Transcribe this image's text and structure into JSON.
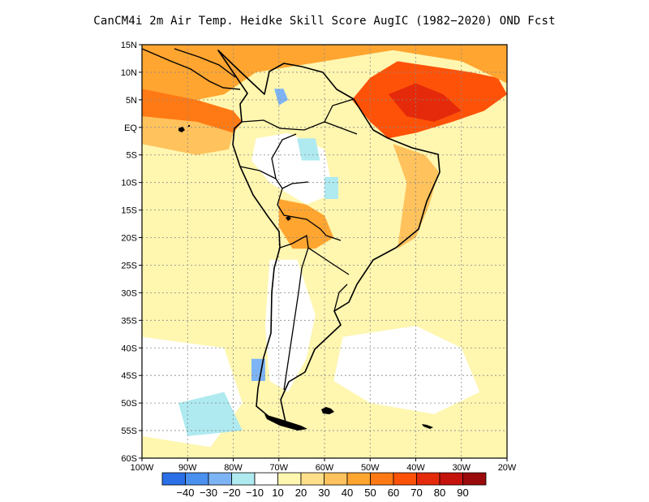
{
  "title": "CanCM4i  2m Air Temp. Heidke Skill Score AugIC (1982−2020) OND Fcst",
  "map": {
    "lon_range": [
      -100,
      -20
    ],
    "lat_range": [
      -60,
      15
    ],
    "lat_ticks": [
      {
        "value": 15,
        "label": "15N"
      },
      {
        "value": 10,
        "label": "10N"
      },
      {
        "value": 5,
        "label": "5N"
      },
      {
        "value": 0,
        "label": "EQ"
      },
      {
        "value": -5,
        "label": "5S"
      },
      {
        "value": -10,
        "label": "10S"
      },
      {
        "value": -15,
        "label": "15S"
      },
      {
        "value": -20,
        "label": "20S"
      },
      {
        "value": -25,
        "label": "25S"
      },
      {
        "value": -30,
        "label": "30S"
      },
      {
        "value": -35,
        "label": "35S"
      },
      {
        "value": -40,
        "label": "40S"
      },
      {
        "value": -45,
        "label": "45S"
      },
      {
        "value": -50,
        "label": "50S"
      },
      {
        "value": -55,
        "label": "55S"
      },
      {
        "value": -60,
        "label": "60S"
      }
    ],
    "lon_ticks": [
      {
        "value": -100,
        "label": "100W"
      },
      {
        "value": -90,
        "label": "90W"
      },
      {
        "value": -80,
        "label": "80W"
      },
      {
        "value": -70,
        "label": "70W"
      },
      {
        "value": -60,
        "label": "60W"
      },
      {
        "value": -50,
        "label": "50W"
      },
      {
        "value": -40,
        "label": "40W"
      },
      {
        "value": -30,
        "label": "30W"
      },
      {
        "value": -20,
        "label": "20W"
      }
    ],
    "grid": true,
    "projection": "equirectangular"
  },
  "colorbar": {
    "colors": [
      "#2a6fe6",
      "#4a90ee",
      "#7db4f5",
      "#aeeaf0",
      "#ffffff",
      "#fff6b0",
      "#ffe08a",
      "#ffc25c",
      "#ffa530",
      "#ff7a14",
      "#ff5209",
      "#e42a0a",
      "#c5120c",
      "#9a0a0a"
    ],
    "labels": [
      "−40",
      "−30",
      "−20",
      "−10",
      "10",
      "20",
      "30",
      "40",
      "50",
      "60",
      "70",
      "80",
      "90"
    ]
  },
  "regions": [
    {
      "name": "tropical-atlantic-high",
      "level": 70,
      "color": "#ff5209",
      "path": [
        [
          -50,
          9
        ],
        [
          -44,
          12
        ],
        [
          -36,
          11
        ],
        [
          -28,
          10
        ],
        [
          -22,
          9
        ],
        [
          -20,
          6
        ],
        [
          -25,
          3
        ],
        [
          -32,
          1
        ],
        [
          -40,
          -1
        ],
        [
          -46,
          -2
        ],
        [
          -50,
          1
        ],
        [
          -54,
          5
        ]
      ]
    },
    {
      "name": "tropical-atlantic-core",
      "level": 80,
      "color": "#e42a0a",
      "path": [
        [
          -46,
          6
        ],
        [
          -40,
          8
        ],
        [
          -34,
          6
        ],
        [
          -30,
          3
        ],
        [
          -36,
          1
        ],
        [
          -42,
          2
        ]
      ]
    },
    {
      "name": "caribbean-band",
      "level": 50,
      "color": "#ffa530",
      "path": [
        [
          -100,
          15
        ],
        [
          -20,
          15
        ],
        [
          -20,
          8
        ],
        [
          -30,
          12
        ],
        [
          -45,
          14
        ],
        [
          -60,
          12
        ],
        [
          -75,
          10
        ],
        [
          -82,
          6
        ],
        [
          -88,
          5
        ],
        [
          -100,
          7
        ]
      ]
    },
    {
      "name": "eastern-pacific-5n",
      "level": 60,
      "color": "#ff7a14",
      "path": [
        [
          -100,
          7
        ],
        [
          -88,
          5
        ],
        [
          -80,
          3
        ],
        [
          -78,
          1
        ],
        [
          -80,
          -1
        ],
        [
          -88,
          1
        ],
        [
          -100,
          2
        ]
      ]
    },
    {
      "name": "pacific-equatorial",
      "level": 40,
      "color": "#ffc25c",
      "path": [
        [
          -100,
          2
        ],
        [
          -88,
          1
        ],
        [
          -80,
          -1
        ],
        [
          -81,
          -4
        ],
        [
          -88,
          -5
        ],
        [
          -100,
          -3
        ]
      ]
    },
    {
      "name": "altiplano",
      "level": 50,
      "color": "#ffa530",
      "path": [
        [
          -70,
          -13
        ],
        [
          -64,
          -14
        ],
        [
          -60,
          -16
        ],
        [
          -58,
          -20
        ],
        [
          -62,
          -22
        ],
        [
          -67,
          -22
        ],
        [
          -70,
          -18
        ]
      ]
    },
    {
      "name": "eastern-brazil",
      "level": 40,
      "color": "#ffc25c",
      "path": [
        [
          -45,
          -3
        ],
        [
          -38,
          -5
        ],
        [
          -35,
          -8
        ],
        [
          -37,
          -14
        ],
        [
          -40,
          -20
        ],
        [
          -44,
          -22
        ],
        [
          -43,
          -16
        ],
        [
          -42,
          -10
        ]
      ]
    }
  ]
}
